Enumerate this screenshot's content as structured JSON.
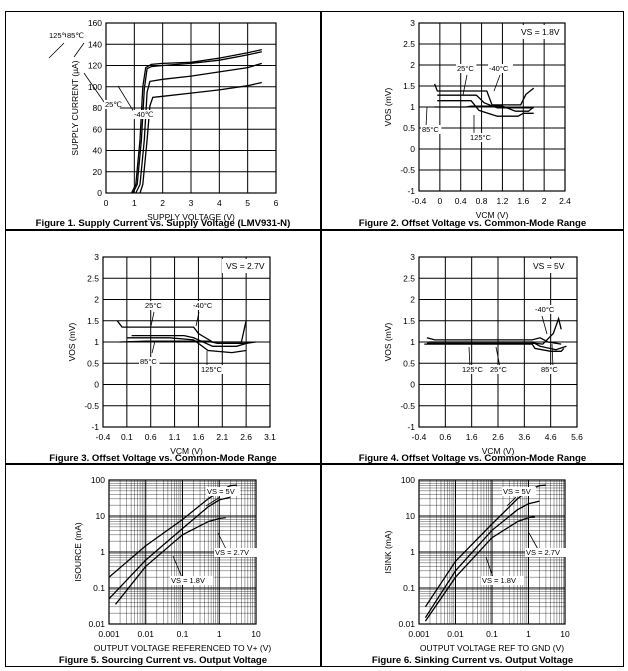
{
  "chart_data": [
    {
      "type": "line",
      "caption": "Figure 1. Supply Current vs. Supply Voltage (LMV931-N)",
      "xlabel": "SUPPLY VOLTAGE (V)",
      "ylabel": "SUPPLY CURRENT (µA)",
      "xlim": [
        0,
        6
      ],
      "ylim": [
        0,
        160
      ],
      "xticks": [
        "0",
        "1",
        "2",
        "3",
        "4",
        "5",
        "6"
      ],
      "yticks": [
        "0",
        "20",
        "40",
        "60",
        "80",
        "100",
        "120",
        "140",
        "160"
      ],
      "grid": true,
      "series": [
        {
          "name": "125℃",
          "points": [
            [
              0.9,
              0
            ],
            [
              1.05,
              8
            ],
            [
              1.2,
              50
            ],
            [
              1.3,
              100
            ],
            [
              1.4,
              118
            ],
            [
              1.6,
              121
            ],
            [
              2,
              122
            ],
            [
              3,
              123
            ],
            [
              4,
              127
            ],
            [
              5,
              132
            ],
            [
              5.5,
              135
            ]
          ]
        },
        {
          "name": "85℃",
          "points": [
            [
              0.95,
              0
            ],
            [
              1.1,
              8
            ],
            [
              1.25,
              50
            ],
            [
              1.35,
              98
            ],
            [
              1.45,
              117
            ],
            [
              1.6,
              119
            ],
            [
              2,
              120
            ],
            [
              3,
              122
            ],
            [
              4,
              125
            ],
            [
              5,
              130
            ],
            [
              5.5,
              133
            ]
          ]
        },
        {
          "name": "25℃",
          "points": [
            [
              1.05,
              0
            ],
            [
              1.2,
              8
            ],
            [
              1.35,
              50
            ],
            [
              1.45,
              95
            ],
            [
              1.55,
              105
            ],
            [
              2,
              107
            ],
            [
              3,
              110
            ],
            [
              4,
              114
            ],
            [
              5,
              118
            ],
            [
              5.5,
              122
            ]
          ]
        },
        {
          "name": "-40℃",
          "points": [
            [
              1.2,
              0
            ],
            [
              1.3,
              8
            ],
            [
              1.45,
              50
            ],
            [
              1.55,
              82
            ],
            [
              1.65,
              90
            ],
            [
              2,
              91
            ],
            [
              3,
              94
            ],
            [
              4,
              97
            ],
            [
              5,
              101
            ],
            [
              5.5,
              104
            ]
          ]
        }
      ],
      "annotations": [
        "125℃",
        "85℃",
        "25℃",
        "-40℃"
      ]
    },
    {
      "type": "line",
      "caption": "Figure 2. Offset Voltage vs. Common-Mode Range",
      "xlabel": "VCM (V)",
      "ylabel": "VOS (mV)",
      "condition": "VS = 1.8V",
      "xlim": [
        -0.4,
        2.4
      ],
      "ylim": [
        -1,
        3
      ],
      "xticks": [
        "-0.4",
        "0",
        "0.4",
        "0.8",
        "1.2",
        "1.6",
        "2",
        "2.4"
      ],
      "yticks": [
        "-1",
        "-0.5",
        "0",
        "0.5",
        "1",
        "1.5",
        "2",
        "2.5",
        "3"
      ],
      "grid": true,
      "series": [
        {
          "name": "25°C",
          "points": [
            [
              -0.1,
              1.55
            ],
            [
              -0.05,
              1.38
            ],
            [
              0.9,
              1.38
            ],
            [
              1.0,
              1.05
            ],
            [
              1.55,
              1.05
            ],
            [
              1.65,
              1.3
            ],
            [
              1.8,
              1.45
            ]
          ]
        },
        {
          "name": "-40°C",
          "points": [
            [
              -0.05,
              1.28
            ],
            [
              0.7,
              1.28
            ],
            [
              0.85,
              1.1
            ],
            [
              1.1,
              0.98
            ],
            [
              1.5,
              0.98
            ],
            [
              1.8,
              0.98
            ]
          ]
        },
        {
          "name": "85°C",
          "points": [
            [
              -0.1,
              1.0
            ],
            [
              0.5,
              1.0
            ],
            [
              0.6,
              1.02
            ],
            [
              1.2,
              1.02
            ],
            [
              1.45,
              0.9
            ],
            [
              1.7,
              0.9
            ],
            [
              1.8,
              1.0
            ]
          ]
        },
        {
          "name": "125°C",
          "points": [
            [
              -0.05,
              1.15
            ],
            [
              0.6,
              1.15
            ],
            [
              0.75,
              0.92
            ],
            [
              1.1,
              0.78
            ],
            [
              1.5,
              0.78
            ],
            [
              1.6,
              0.85
            ],
            [
              1.8,
              0.85
            ]
          ]
        }
      ],
      "annotations": [
        "25°C",
        "-40°C",
        "85°C",
        "125°C"
      ]
    },
    {
      "type": "line",
      "caption": "Figure 3. Offset Voltage vs. Common-Mode Range",
      "xlabel": "VCM (V)",
      "ylabel": "VOS (mV)",
      "condition": "VS = 2.7V",
      "xlim": [
        -0.4,
        3.1
      ],
      "ylim": [
        -1,
        3
      ],
      "xticks": [
        "-0.4",
        "0.1",
        "0.6",
        "1.1",
        "1.6",
        "2.1",
        "2.6",
        "3.1"
      ],
      "yticks": [
        "-1",
        "-0.5",
        "0",
        "0.5",
        "1",
        "1.5",
        "2",
        "2.5",
        "3"
      ],
      "grid": true,
      "series": [
        {
          "name": "25°C",
          "points": [
            [
              -0.1,
              1.5
            ],
            [
              0.0,
              1.35
            ],
            [
              1.5,
              1.35
            ],
            [
              1.6,
              1.2
            ],
            [
              1.9,
              1.0
            ],
            [
              2.5,
              1.0
            ],
            [
              2.6,
              1.5
            ]
          ]
        },
        {
          "name": "-40°C",
          "points": [
            [
              0.2,
              1.15
            ],
            [
              1.3,
              1.15
            ],
            [
              1.5,
              1.1
            ],
            [
              1.9,
              0.9
            ],
            [
              2.4,
              0.9
            ],
            [
              2.7,
              1.0
            ]
          ]
        },
        {
          "name": "85°C",
          "points": [
            [
              -0.05,
              1.0
            ],
            [
              0.5,
              1.02
            ],
            [
              1.8,
              1.02
            ],
            [
              2.0,
              0.97
            ],
            [
              2.6,
              0.97
            ],
            [
              2.8,
              1.0
            ]
          ]
        },
        {
          "name": "125°C",
          "points": [
            [
              0.1,
              1.1
            ],
            [
              1.0,
              1.1
            ],
            [
              1.5,
              1.05
            ],
            [
              1.8,
              0.8
            ],
            [
              2.3,
              0.75
            ],
            [
              2.6,
              0.8
            ]
          ]
        }
      ],
      "annotations": [
        "25°C",
        "-40°C",
        "85°C",
        "125°C"
      ]
    },
    {
      "type": "line",
      "caption": "Figure 4. Offset Voltage vs. Common-Mode Range",
      "xlabel": "VCM (V)",
      "ylabel": "VOS (mV)",
      "condition": "VS = 5V",
      "xlim": [
        -0.4,
        5.6
      ],
      "ylim": [
        -1,
        3
      ],
      "xticks": [
        "-0.4",
        "0.6",
        "1.6",
        "2.6",
        "3.6",
        "4.6",
        "5.6"
      ],
      "yticks": [
        "-1",
        "-0.5",
        "0",
        "0.5",
        "1",
        "1.5",
        "2",
        "2.5",
        "3"
      ],
      "grid": true,
      "series": [
        {
          "name": "-40°C",
          "points": [
            [
              -0.1,
              1.1
            ],
            [
              0.2,
              1.05
            ],
            [
              3.9,
              1.05
            ],
            [
              4.2,
              1.1
            ],
            [
              4.5,
              1.0
            ],
            [
              5.0,
              0.95
            ]
          ]
        },
        {
          "name": "125°C",
          "points": [
            [
              -0.2,
              0.95
            ],
            [
              3.9,
              0.95
            ],
            [
              4.0,
              0.85
            ],
            [
              4.6,
              0.78
            ],
            [
              5.0,
              0.78
            ],
            [
              5.1,
              0.85
            ]
          ]
        },
        {
          "name": "25°C",
          "points": [
            [
              0.0,
              1.0
            ],
            [
              3.9,
              1.0
            ],
            [
              4.2,
              0.9
            ],
            [
              4.8,
              0.82
            ],
            [
              5.2,
              0.9
            ]
          ]
        },
        {
          "name": "85°C",
          "points": [
            [
              -0.1,
              0.97
            ],
            [
              4.0,
              0.97
            ],
            [
              4.3,
              0.95
            ],
            [
              4.7,
              1.2
            ],
            [
              4.9,
              1.55
            ],
            [
              5.0,
              1.3
            ]
          ]
        }
      ],
      "annotations": [
        "-40°C",
        "125°C",
        "25°C",
        "85°C"
      ]
    },
    {
      "type": "line",
      "caption": "Figure 5. Sourcing Current vs. Output Voltage",
      "xlabel": "OUTPUT VOLTAGE REFERENCED TO V+ (V)",
      "ylabel": "ISOURCE (mA)",
      "xscale": "log",
      "yscale": "log",
      "xlim": [
        0.001,
        10
      ],
      "ylim": [
        0.01,
        100
      ],
      "xticks": [
        "0.001",
        "0.01",
        "0.1",
        "1",
        "10"
      ],
      "yticks": [
        "0.01",
        "0.1",
        "1",
        "10",
        "100"
      ],
      "grid": true,
      "series": [
        {
          "name": "VS = 5V",
          "points": [
            [
              0.001,
              0.2
            ],
            [
              0.01,
              1.5
            ],
            [
              0.1,
              8
            ],
            [
              0.5,
              30
            ],
            [
              1,
              48
            ],
            [
              2,
              70
            ],
            [
              3,
              72
            ]
          ]
        },
        {
          "name": "VS = 2.7V",
          "points": [
            [
              0.001,
              0.05
            ],
            [
              0.01,
              0.6
            ],
            [
              0.1,
              4.5
            ],
            [
              0.5,
              18
            ],
            [
              1,
              28
            ],
            [
              2,
              33
            ]
          ]
        },
        {
          "name": "VS = 1.8V",
          "points": [
            [
              0.0015,
              0.035
            ],
            [
              0.01,
              0.4
            ],
            [
              0.1,
              3
            ],
            [
              0.5,
              7
            ],
            [
              1,
              8.5
            ],
            [
              1.5,
              9
            ]
          ]
        }
      ],
      "annotations": [
        "VS = 5V",
        "VS = 2.7V",
        "VS = 1.8V"
      ]
    },
    {
      "type": "line",
      "caption": "Figure 6. Sinking Current vs. Output Voltage",
      "xlabel": "OUTPUT VOLTAGE REF TO GND (V)",
      "ylabel": "ISINK (mA)",
      "xscale": "log",
      "yscale": "log",
      "xlim": [
        0.001,
        10
      ],
      "ylim": [
        0.01,
        100
      ],
      "xticks": [
        "0.001",
        "0.01",
        "0.1",
        "1",
        "10"
      ],
      "yticks": [
        "0.01",
        "0.1",
        "1",
        "10",
        "100"
      ],
      "grid": true,
      "series": [
        {
          "name": "VS = 5V",
          "points": [
            [
              0.0015,
              0.03
            ],
            [
              0.01,
              0.55
            ],
            [
              0.1,
              6
            ],
            [
              0.5,
              30
            ],
            [
              1,
              52
            ],
            [
              2,
              70
            ],
            [
              3,
              72
            ]
          ]
        },
        {
          "name": "VS = 2.7V",
          "points": [
            [
              0.0015,
              0.015
            ],
            [
              0.01,
              0.3
            ],
            [
              0.1,
              4
            ],
            [
              0.5,
              15
            ],
            [
              1,
              22
            ],
            [
              2,
              26
            ]
          ]
        },
        {
          "name": "VS = 1.8V",
          "points": [
            [
              0.0015,
              0.012
            ],
            [
              0.01,
              0.2
            ],
            [
              0.1,
              2.5
            ],
            [
              0.5,
              7
            ],
            [
              1,
              9
            ],
            [
              1.5,
              9.5
            ]
          ]
        }
      ],
      "annotations": [
        "VS = 5V",
        "VS = 2.7V",
        "VS = 1.8V"
      ]
    }
  ]
}
